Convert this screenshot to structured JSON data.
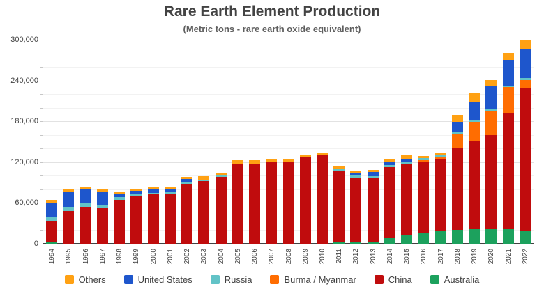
{
  "title": "Rare Earth Element Production",
  "subtitle": "(Metric tons - rare earth oxide equivalent)",
  "chart_data": {
    "type": "bar",
    "stacked": true,
    "grid": true,
    "legend_position": "bottom",
    "x_label_rotation": -90,
    "ylim": [
      0,
      300000
    ],
    "y_minor_step": 20000,
    "y_ticks": [
      {
        "value": 0,
        "label": "0"
      },
      {
        "value": 60000,
        "label": "60,000"
      },
      {
        "value": 120000,
        "label": "120,000"
      },
      {
        "value": 180000,
        "label": "180,000"
      },
      {
        "value": 240000,
        "label": "240,000"
      },
      {
        "value": 300000,
        "label": "300,000"
      }
    ],
    "categories": [
      "1994",
      "1995",
      "1996",
      "1997",
      "1998",
      "1999",
      "2000",
      "2001",
      "2002",
      "2003",
      "2004",
      "2005",
      "2006",
      "2007",
      "2008",
      "2009",
      "2010",
      "2011",
      "2012",
      "2013",
      "2014",
      "2015",
      "2016",
      "2017",
      "2018",
      "2019",
      "2020",
      "2021",
      "2022"
    ],
    "series": [
      {
        "key": "australia",
        "name": "Australia",
        "color": "#1CA15D",
        "values": [
          2500,
          0,
          0,
          0,
          0,
          0,
          0,
          0,
          0,
          0,
          0,
          0,
          0,
          0,
          0,
          0,
          0,
          2200,
          3200,
          2000,
          8000,
          12000,
          15000,
          19000,
          20000,
          21000,
          21000,
          22000,
          18000
        ]
      },
      {
        "key": "china",
        "name": "China",
        "color": "#C00C0D",
        "values": [
          30600,
          48000,
          54000,
          52000,
          65000,
          70000,
          73000,
          74000,
          88000,
          92000,
          98000,
          118000,
          118000,
          120000,
          120000,
          128000,
          130000,
          105000,
          94000,
          95000,
          105000,
          105000,
          105000,
          105000,
          120000,
          131000,
          139000,
          170000,
          210000
        ]
      },
      {
        "key": "burma",
        "name": "Burma / Myanmar",
        "color": "#FF6D01",
        "values": [
          0,
          0,
          0,
          0,
          0,
          0,
          0,
          0,
          0,
          0,
          0,
          0,
          0,
          0,
          0,
          0,
          0,
          0,
          0,
          0,
          0,
          0,
          3000,
          4000,
          21000,
          27000,
          36000,
          38000,
          13000
        ]
      },
      {
        "key": "russia",
        "name": "Russia",
        "color": "#62C3C7",
        "values": [
          6000,
          6000,
          6000,
          5000,
          3500,
          2500,
          2000,
          2000,
          2000,
          2500,
          2000,
          0,
          0,
          0,
          0,
          0,
          0,
          2000,
          3000,
          2500,
          2500,
          2500,
          2800,
          2600,
          2700,
          2700,
          2700,
          2800,
          2600
        ]
      },
      {
        "key": "us",
        "name": "United States",
        "color": "#1E56CC",
        "values": [
          20700,
          22200,
          20400,
          20000,
          5000,
          5000,
          5000,
          5000,
          5000,
          0,
          0,
          0,
          0,
          0,
          0,
          0,
          0,
          0,
          3000,
          5500,
          5400,
          5900,
          0,
          0,
          15000,
          26000,
          33000,
          37000,
          43000
        ]
      },
      {
        "key": "others",
        "name": "Others",
        "color": "#FFA113",
        "values": [
          4500,
          3500,
          3000,
          2800,
          3300,
          3300,
          2700,
          3000,
          3000,
          4500,
          3500,
          4500,
          4500,
          4500,
          4000,
          3500,
          3000,
          4000,
          4300,
          4000,
          2500,
          4500,
          3500,
          3000,
          11000,
          14000,
          8500,
          11000,
          13500
        ]
      }
    ],
    "legend": [
      {
        "label": "Others",
        "color": "#FFA113"
      },
      {
        "label": "United States",
        "color": "#1E56CC"
      },
      {
        "label": "Russia",
        "color": "#62C3C7"
      },
      {
        "label": "Burma / Myanmar",
        "color": "#FF6D01"
      },
      {
        "label": "China",
        "color": "#C00C0D"
      },
      {
        "label": "Australia",
        "color": "#1CA15D"
      }
    ]
  }
}
